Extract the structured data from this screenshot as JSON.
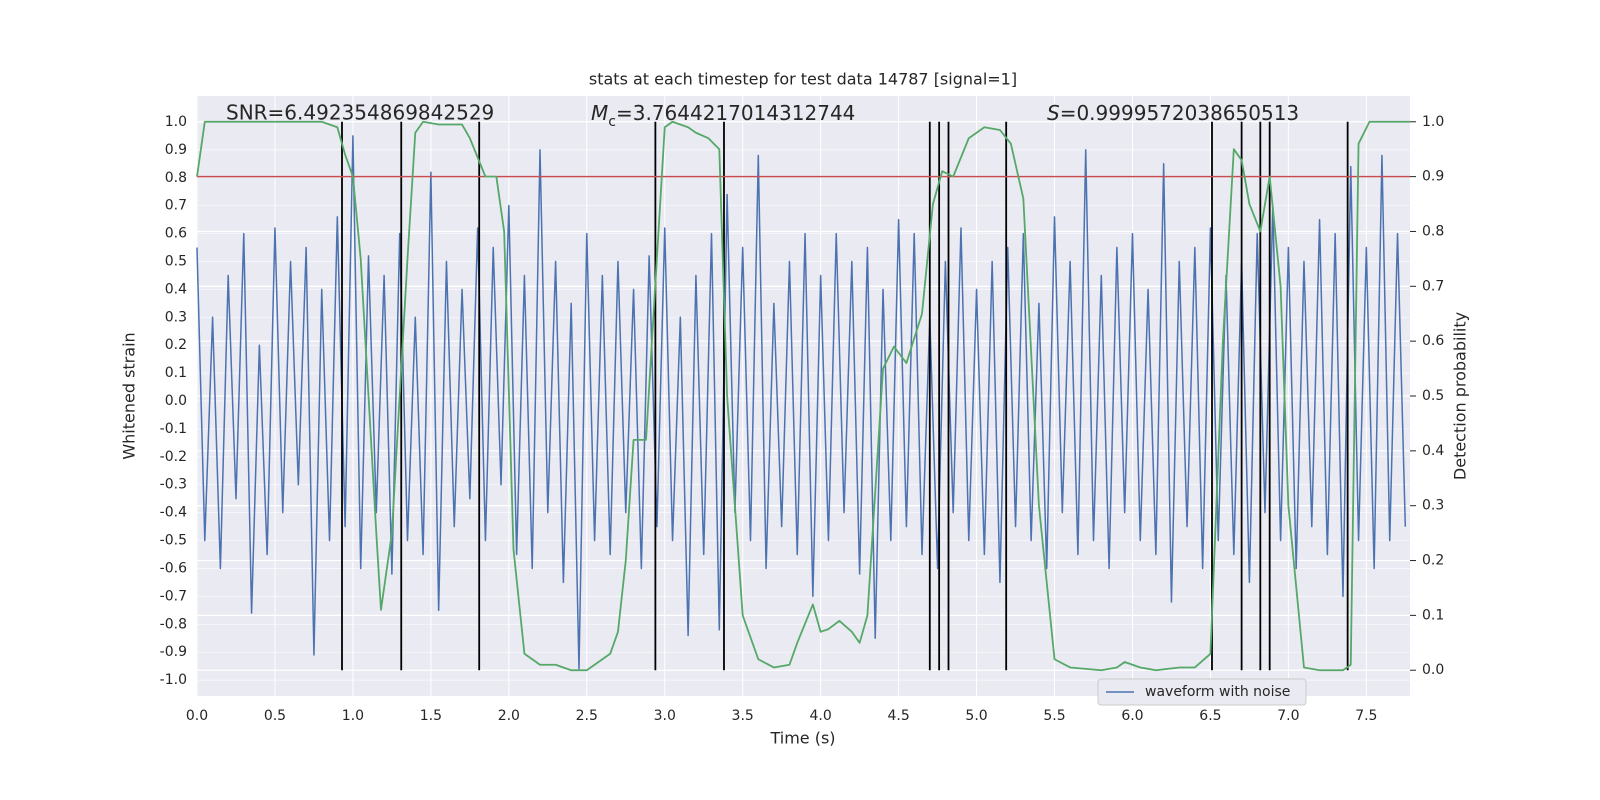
{
  "chart_data": {
    "type": "line",
    "title": "stats at each timestep for test data 14787 [signal=1]",
    "xlabel": "Time (s)",
    "ylabel": "Whitened strain",
    "y2label": "Detection probability",
    "annotations": [
      {
        "text": "SNR=6.492354869842529"
      },
      {
        "symbol": "M",
        "sub": "c",
        "text": "=3.7644217014312744"
      },
      {
        "symbol": "S",
        "text": "=0.9999572038650513"
      }
    ],
    "xlim": [
      0,
      7.78
    ],
    "ylim": [
      -1.057,
      1.093
    ],
    "y2lim": [
      -0.047,
      1.047
    ],
    "xticks": [
      {
        "value": 0,
        "label": "0.0"
      },
      0.5,
      {
        "value": 1,
        "label": "1.0"
      },
      1.5,
      {
        "value": 2,
        "label": "2.0"
      },
      2.5,
      {
        "value": 3,
        "label": "3.0"
      },
      3.5,
      {
        "value": 4,
        "label": "4.0"
      },
      4.5,
      {
        "value": 5,
        "label": "5.0"
      },
      5.5,
      {
        "value": 6,
        "label": "6.0"
      },
      6.5,
      {
        "value": 7,
        "label": "7.0"
      },
      7.5
    ],
    "yticks": [
      {
        "value": -1,
        "label": "-1.0"
      },
      -0.9,
      -0.8,
      -0.7,
      -0.6,
      -0.5,
      -0.4,
      -0.3,
      -0.2,
      -0.1,
      {
        "value": 0,
        "label": "0.0"
      },
      0.1,
      0.2,
      0.3,
      0.4,
      0.5,
      0.6,
      0.7,
      0.8,
      0.9,
      {
        "value": 1,
        "label": "1.0"
      }
    ],
    "y2ticks": [
      {
        "value": 0,
        "label": "0.0"
      },
      0.1,
      0.2,
      0.3,
      0.4,
      0.5,
      0.6,
      0.7,
      0.8,
      0.9,
      {
        "value": 1,
        "label": "1.0"
      }
    ],
    "grid": true,
    "legend": "lower right",
    "threshold": 0.9,
    "threshold_color": "#c44e52",
    "vlines": [
      0.93,
      1.31,
      1.81,
      2.94,
      3.38,
      4.7,
      4.76,
      4.82,
      5.19,
      6.51,
      6.7,
      6.82,
      6.88,
      7.38
    ],
    "vline_color": "#000000",
    "series": [
      {
        "name": "waveform with noise",
        "color": "#4c72b0",
        "x": [
          0,
          0.05,
          0.1,
          0.15,
          0.2,
          0.25,
          0.3,
          0.35,
          0.4,
          0.45,
          0.5,
          0.55,
          0.6,
          0.65,
          0.7,
          0.75,
          0.8,
          0.85,
          0.9,
          0.95,
          1,
          1.05,
          1.1,
          1.15,
          1.2,
          1.25,
          1.3,
          1.35,
          1.4,
          1.45,
          1.5,
          1.55,
          1.6,
          1.65,
          1.7,
          1.75,
          1.8,
          1.85,
          1.9,
          1.95,
          2,
          2.05,
          2.1,
          2.15,
          2.2,
          2.25,
          2.3,
          2.35,
          2.4,
          2.45,
          2.5,
          2.55,
          2.6,
          2.65,
          2.7,
          2.75,
          2.8,
          2.85,
          2.9,
          2.95,
          3,
          3.05,
          3.1,
          3.15,
          3.2,
          3.25,
          3.3,
          3.35,
          3.4,
          3.45,
          3.5,
          3.55,
          3.6,
          3.65,
          3.7,
          3.75,
          3.8,
          3.85,
          3.9,
          3.95,
          4,
          4.05,
          4.1,
          4.15,
          4.2,
          4.25,
          4.3,
          4.35,
          4.4,
          4.45,
          4.5,
          4.55,
          4.6,
          4.65,
          4.7,
          4.75,
          4.8,
          4.85,
          4.9,
          4.95,
          5,
          5.05,
          5.1,
          5.15,
          5.2,
          5.25,
          5.3,
          5.35,
          5.4,
          5.45,
          5.5,
          5.55,
          5.6,
          5.65,
          5.7,
          5.75,
          5.8,
          5.85,
          5.9,
          5.95,
          6,
          6.05,
          6.1,
          6.15,
          6.2,
          6.25,
          6.3,
          6.35,
          6.4,
          6.45,
          6.5,
          6.55,
          6.6,
          6.65,
          6.7,
          6.75,
          6.8,
          6.85,
          6.9,
          6.95,
          7,
          7.05,
          7.1,
          7.15,
          7.2,
          7.25,
          7.3,
          7.35,
          7.4,
          7.45,
          7.5,
          7.55,
          7.6,
          7.65,
          7.7,
          7.75
        ],
        "values": [
          0.55,
          -0.5,
          0.3,
          -0.6,
          0.45,
          -0.35,
          0.6,
          -0.76,
          0.2,
          -0.55,
          0.62,
          -0.4,
          0.5,
          -0.3,
          0.55,
          -0.91,
          0.4,
          -0.5,
          0.66,
          -0.45,
          0.95,
          -0.6,
          0.52,
          -0.4,
          0.45,
          -0.62,
          0.6,
          -0.5,
          0.3,
          -0.55,
          0.82,
          -0.75,
          0.5,
          -0.45,
          0.4,
          -0.35,
          0.62,
          -0.5,
          0.55,
          -0.3,
          0.7,
          -0.55,
          0.45,
          -0.6,
          0.9,
          -0.4,
          0.5,
          -0.65,
          0.35,
          -0.96,
          0.6,
          -0.5,
          0.45,
          -0.55,
          0.5,
          -0.4,
          0.4,
          -0.6,
          0.52,
          -0.45,
          0.62,
          -0.5,
          0.3,
          -0.84,
          0.45,
          -0.55,
          0.6,
          -0.82,
          0.74,
          -0.4,
          0.55,
          -0.5,
          0.88,
          -0.6,
          0.35,
          -0.45,
          0.5,
          -0.55,
          0.6,
          -0.7,
          0.45,
          -0.5,
          0.6,
          -0.4,
          0.5,
          -0.62,
          0.55,
          -0.85,
          0.4,
          -0.5,
          0.65,
          -0.45,
          0.6,
          -0.55,
          0.3,
          -0.6,
          0.5,
          -0.4,
          0.62,
          -0.5,
          0.4,
          -0.55,
          0.5,
          -0.65,
          0.55,
          -0.45,
          0.6,
          -0.5,
          0.35,
          -0.6,
          0.66,
          -0.4,
          0.5,
          -0.55,
          0.9,
          -0.5,
          0.45,
          -0.6,
          0.55,
          -0.4,
          0.6,
          -0.5,
          0.4,
          -0.55,
          0.85,
          -0.72,
          0.5,
          -0.45,
          0.55,
          -0.6,
          0.62,
          -0.5,
          0.45,
          -0.55,
          0.5,
          -0.65,
          0.6,
          -0.4,
          0.7,
          -0.5,
          0.55,
          -0.6,
          0.5,
          -0.45,
          0.65,
          -0.55,
          0.6,
          -0.7,
          0.84,
          -0.5,
          0.55,
          -0.6,
          0.88,
          -0.5,
          0.6,
          -0.45
        ]
      },
      {
        "color": "#55a868",
        "axis": "y2",
        "x": [
          0,
          0.05,
          0.8,
          0.9,
          0.95,
          1.0,
          1.05,
          1.1,
          1.15,
          1.18,
          1.25,
          1.3,
          1.35,
          1.4,
          1.45,
          1.55,
          1.7,
          1.75,
          1.85,
          1.92,
          1.97,
          2.03,
          2.1,
          2.2,
          2.3,
          2.4,
          2.5,
          2.6,
          2.65,
          2.7,
          2.75,
          2.8,
          2.88,
          3.0,
          3.05,
          3.15,
          3.2,
          3.28,
          3.35,
          3.4,
          3.5,
          3.6,
          3.7,
          3.8,
          3.85,
          3.95,
          4.0,
          4.05,
          4.12,
          4.2,
          4.25,
          4.3,
          4.4,
          4.47,
          4.55,
          4.65,
          4.72,
          4.78,
          4.85,
          4.95,
          5.05,
          5.15,
          5.22,
          5.3,
          5.4,
          5.5,
          5.6,
          5.8,
          5.9,
          5.95,
          6.05,
          6.15,
          6.3,
          6.4,
          6.5,
          6.58,
          6.65,
          6.7,
          6.75,
          6.82,
          6.88,
          6.95,
          7.0,
          7.1,
          7.2,
          7.35,
          7.4,
          7.45,
          7.52,
          7.78
        ],
        "values": [
          0.9,
          1.0,
          1.0,
          0.99,
          0.94,
          0.9,
          0.75,
          0.5,
          0.25,
          0.11,
          0.25,
          0.5,
          0.75,
          0.98,
          1.0,
          0.995,
          0.995,
          0.97,
          0.9,
          0.9,
          0.8,
          0.22,
          0.03,
          0.01,
          0.01,
          0.0,
          0.0,
          0.02,
          0.03,
          0.07,
          0.2,
          0.42,
          0.42,
          0.99,
          1.0,
          0.99,
          0.98,
          0.97,
          0.95,
          0.5,
          0.1,
          0.02,
          0.005,
          0.01,
          0.05,
          0.12,
          0.07,
          0.075,
          0.09,
          0.07,
          0.05,
          0.1,
          0.55,
          0.59,
          0.56,
          0.65,
          0.85,
          0.91,
          0.9,
          0.97,
          0.99,
          0.985,
          0.96,
          0.86,
          0.3,
          0.02,
          0.005,
          0.0,
          0.005,
          0.015,
          0.005,
          0.0,
          0.005,
          0.005,
          0.03,
          0.6,
          0.95,
          0.93,
          0.85,
          0.8,
          0.9,
          0.7,
          0.3,
          0.005,
          0.0,
          0.0,
          0.01,
          0.96,
          1.0,
          1.0
        ]
      }
    ]
  }
}
